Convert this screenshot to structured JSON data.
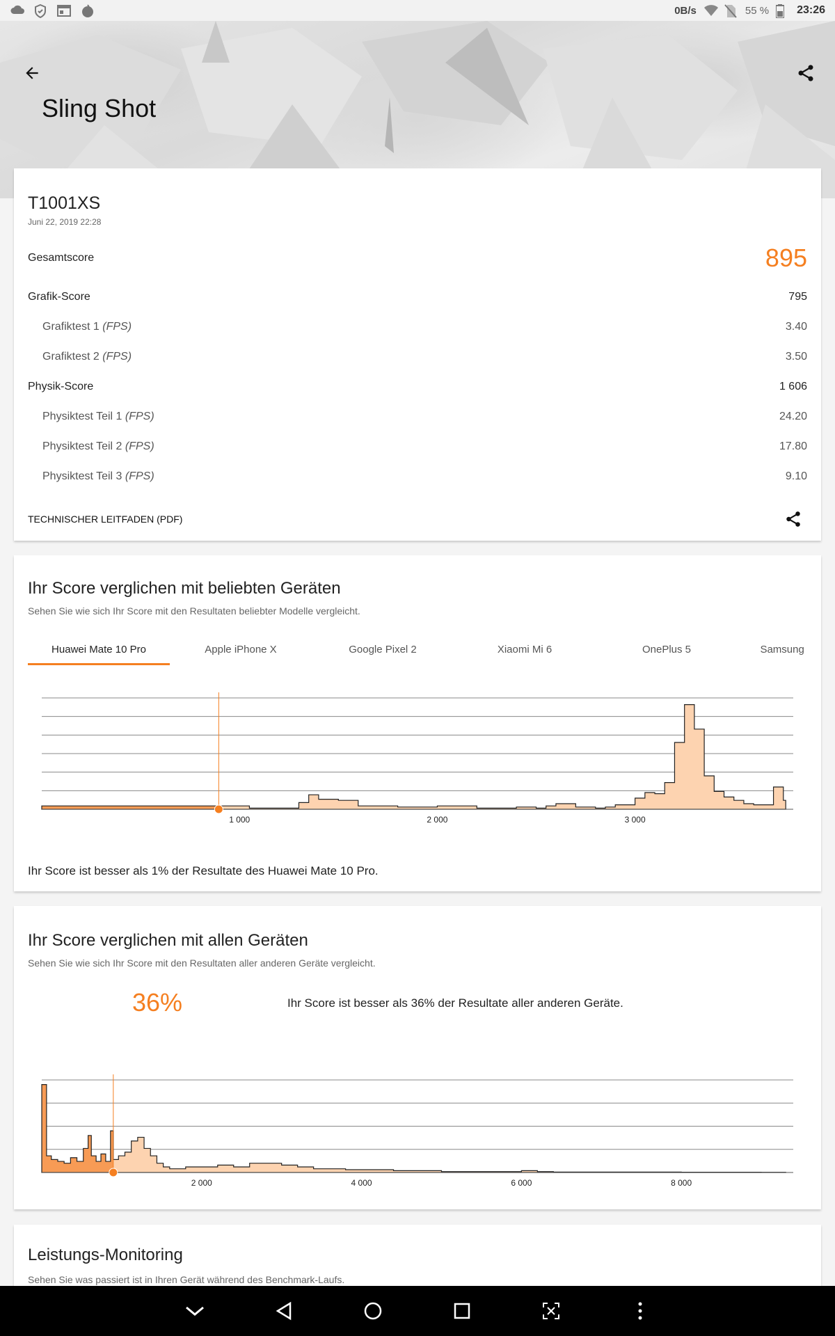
{
  "status_bar": {
    "net_speed": "0B/s",
    "battery": "55 %",
    "time": "23:26"
  },
  "header": {
    "title": "Sling Shot"
  },
  "result": {
    "device": "T1001XS",
    "date": "Juni 22, 2019 22:28",
    "total_label": "Gesamtscore",
    "total_value": "895",
    "graphics_label": "Grafik-Score",
    "graphics_value": "795",
    "gt1_label": "Grafiktest 1",
    "gt1_value": "3.40",
    "gt2_label": "Grafiktest 2",
    "gt2_value": "3.50",
    "physics_label": "Physik-Score",
    "physics_value": "1 606",
    "pt1_label": "Physiktest Teil 1",
    "pt1_value": "24.20",
    "pt2_label": "Physiktest Teil 2",
    "pt2_value": "17.80",
    "pt3_label": "Physiktest Teil 3",
    "pt3_value": "9.10",
    "unit": "(FPS)",
    "pdf_label": "TECHNISCHER LEITFADEN (PDF)"
  },
  "popular": {
    "title": "Ihr Score verglichen mit beliebten Geräten",
    "subtitle": "Sehen Sie wie sich Ihr Score mit den Resultaten beliebter Modelle vergleicht.",
    "tabs": [
      "Huawei Mate 10 Pro",
      "Apple iPhone X",
      "Google Pixel 2",
      "Xiaomi Mi 6",
      "OnePlus 5",
      "Samsung Ga"
    ],
    "note": "Ihr Score ist besser als 1% der Resultate des Huawei Mate 10 Pro."
  },
  "all": {
    "title": "Ihr Score verglichen mit allen Geräten",
    "subtitle": "Sehen Sie wie sich Ihr Score mit den Resultaten aller anderen Geräte vergleicht.",
    "percent": "36%",
    "note": "Ihr Score ist besser als 36% der Resultate aller anderen Geräte."
  },
  "monitoring": {
    "title": "Leistungs-Monitoring",
    "subtitle": "Sehen Sie was passiert ist in Ihren Gerät während des Benchmark-Laufs."
  },
  "colors": {
    "accent": "#f57f20",
    "fill_light": "#fdd3b0",
    "fill_dark": "#f79b55"
  },
  "chart_data": [
    {
      "type": "area",
      "xlim": [
        0,
        3800
      ],
      "xticks": [
        1000,
        2000,
        3000
      ],
      "xtick_labels": [
        "1 000",
        "2 000",
        "3 000"
      ],
      "score_marker": 895,
      "grid": true,
      "x": [
        0,
        1050,
        1200,
        1300,
        1350,
        1400,
        1500,
        1600,
        1700,
        1800,
        1900,
        2000,
        2100,
        2200,
        2300,
        2400,
        2500,
        2550,
        2600,
        2700,
        2800,
        2850,
        2900,
        3000,
        3050,
        3100,
        3150,
        3200,
        3250,
        3300,
        3350,
        3400,
        3450,
        3500,
        3550,
        3600,
        3650,
        3700,
        3750
      ],
      "values": [
        3,
        1,
        1,
        6,
        13,
        9,
        8,
        3,
        3,
        2,
        2,
        3,
        3,
        1,
        1,
        2,
        1,
        3,
        5,
        2,
        1,
        2,
        4,
        10,
        15,
        14,
        24,
        60,
        94,
        72,
        30,
        16,
        11,
        8,
        5,
        4,
        4,
        20,
        8
      ]
    },
    {
      "type": "area",
      "xlim": [
        0,
        9400
      ],
      "xticks": [
        2000,
        4000,
        6000,
        8000
      ],
      "xtick_labels": [
        "2 000",
        "4 000",
        "6 000",
        "8 000"
      ],
      "score_marker": 895,
      "grid": true,
      "x": [
        0,
        60,
        120,
        200,
        280,
        360,
        440,
        520,
        580,
        620,
        680,
        740,
        800,
        860,
        895,
        960,
        1040,
        1120,
        1200,
        1280,
        1360,
        1440,
        1520,
        1600,
        1700,
        1800,
        2000,
        2200,
        2400,
        2600,
        2800,
        3000,
        3200,
        3400,
        3600,
        3800,
        4000,
        4200,
        4400,
        4600,
        4800,
        5000,
        5200,
        5600,
        6000,
        6200,
        6400,
        7000,
        8000,
        9000
      ],
      "values": [
        95,
        18,
        14,
        12,
        10,
        16,
        12,
        26,
        40,
        18,
        12,
        20,
        12,
        45,
        14,
        18,
        22,
        34,
        38,
        26,
        18,
        10,
        6,
        4,
        4,
        6,
        6,
        8,
        6,
        10,
        10,
        8,
        6,
        4,
        4,
        3,
        3,
        3,
        2,
        2,
        2,
        1,
        1,
        1,
        2,
        1,
        0.5,
        0.5,
        0.3,
        0.2
      ]
    }
  ]
}
